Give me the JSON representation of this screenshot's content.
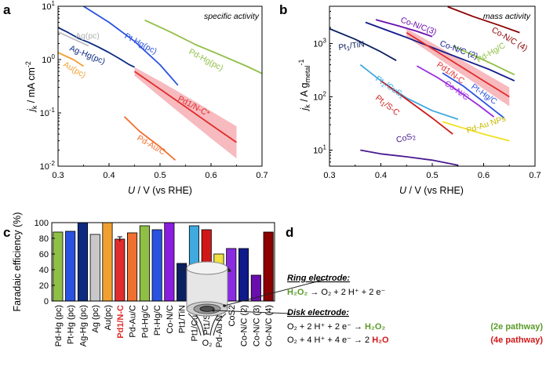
{
  "panels": {
    "a": {
      "letter": "a",
      "title": "specific activity"
    },
    "b": {
      "letter": "b",
      "title": "mass activity"
    },
    "c": {
      "letter": "c"
    },
    "d": {
      "letter": "d"
    }
  },
  "chart_data": [
    {
      "id": "a",
      "type": "line",
      "title": "specific activity",
      "xlabel": "U / V (vs RHE)",
      "ylabel": "j_k / mA cm^-2",
      "xlim": [
        0.3,
        0.7
      ],
      "ylim": [
        0.01,
        10
      ],
      "yscale": "log",
      "xticks": [
        0.3,
        0.4,
        0.5,
        0.6,
        0.7
      ],
      "xtick_labels": [
        "0.3",
        "0.4",
        "0.5",
        "0.6",
        "0.7"
      ],
      "yticks": [
        0.01,
        0.1,
        1,
        10
      ],
      "ytick_labels": [
        "10^-2",
        "10^-1",
        "10^0",
        "10^1"
      ],
      "series": [
        {
          "name": "Pt-Hg(pc)",
          "color": "#2a52e0",
          "x": [
            0.35,
            0.4,
            0.45,
            0.5,
            0.535
          ],
          "y": [
            10,
            5.0,
            2.2,
            0.8,
            0.33
          ]
        },
        {
          "name": "Ag-Hg(pc)",
          "color": "#0b2a80",
          "x": [
            0.3,
            0.32,
            0.34,
            0.36,
            0.38,
            0.4,
            0.42,
            0.44,
            0.45
          ],
          "y": [
            4.0,
            3.2,
            2.5,
            2.1,
            1.7,
            1.35,
            1.05,
            0.8,
            0.72
          ]
        },
        {
          "name": "Ag(pc)",
          "color": "#bdbdbd",
          "x": [
            0.3,
            0.32,
            0.34,
            0.36
          ],
          "y": [
            3.3,
            2.7,
            2.2,
            1.8
          ]
        },
        {
          "name": "Au(pc)",
          "color": "#f0a030",
          "x": [
            0.3,
            0.33,
            0.35
          ],
          "y": [
            1.35,
            1.0,
            0.75
          ]
        },
        {
          "name": "Pd-Hg(pc)",
          "color": "#8fbf45",
          "x": [
            0.47,
            0.52,
            0.57,
            0.62,
            0.67,
            0.7
          ],
          "y": [
            5.5,
            3.3,
            1.9,
            1.2,
            0.75,
            0.55
          ]
        },
        {
          "name": "Pd1/N-C*",
          "color": "#e02c2c",
          "x": [
            0.45,
            0.5,
            0.55,
            0.6,
            0.65
          ],
          "y": [
            0.6,
            0.28,
            0.13,
            0.06,
            0.028
          ]
        },
        {
          "name": "Pd-Au/C",
          "color": "#f07030",
          "x": [
            0.43,
            0.46,
            0.5,
            0.53
          ],
          "y": [
            0.085,
            0.045,
            0.023,
            0.013
          ]
        }
      ]
    },
    {
      "id": "b",
      "type": "line",
      "title": "mass activity",
      "xlabel": "U / V (vs RHE)",
      "ylabel": "j_k / A g_metal^-1",
      "xlim": [
        0.3,
        0.7
      ],
      "ylim": [
        5,
        5000
      ],
      "yscale": "log",
      "xticks": [
        0.3,
        0.4,
        0.5,
        0.6,
        0.7
      ],
      "xtick_labels": [
        "0.3",
        "0.4",
        "0.5",
        "0.6",
        "0.7"
      ],
      "yticks": [
        10,
        100,
        1000
      ],
      "ytick_labels": [
        "10^1",
        "10^2",
        "10^3"
      ],
      "series": [
        {
          "name": "Pt1/TiN",
          "color": "#0b2060",
          "x": [
            0.3,
            0.35,
            0.4,
            0.43
          ],
          "y": [
            1900,
            1200,
            700,
            480
          ]
        },
        {
          "name": "Co-N/C(3)",
          "color": "#6a0dad",
          "x": [
            0.39,
            0.43,
            0.47,
            0.5
          ],
          "y": [
            2800,
            2200,
            1700,
            1350
          ]
        },
        {
          "name": "Co-N/C (2)",
          "color": "#101a8a",
          "x": [
            0.37,
            0.45,
            0.53,
            0.61,
            0.66
          ],
          "y": [
            2500,
            1300,
            650,
            330,
            200
          ]
        },
        {
          "name": "Co-N/C (4)",
          "color": "#8b0000",
          "x": [
            0.53,
            0.58,
            0.63,
            0.67
          ],
          "y": [
            4900,
            3200,
            2200,
            1600
          ]
        },
        {
          "name": "Pd-Hg/C",
          "color": "#8fbf45",
          "x": [
            0.54,
            0.58,
            0.62,
            0.66
          ],
          "y": [
            900,
            600,
            400,
            260
          ]
        },
        {
          "name": "Pd1/N-C",
          "color": "#e02c2c",
          "x": [
            0.45,
            0.5,
            0.55,
            0.6,
            0.65
          ],
          "y": [
            1600,
            800,
            400,
            200,
            100
          ]
        },
        {
          "name": "Co-N/C",
          "color": "#9a2be2",
          "x": [
            0.47,
            0.51,
            0.55,
            0.59,
            0.62
          ],
          "y": [
            380,
            230,
            130,
            70,
            42
          ]
        },
        {
          "name": "Pt-Hg/C",
          "color": "#2a52e0",
          "x": [
            0.52,
            0.56,
            0.6,
            0.64
          ],
          "y": [
            280,
            160,
            80,
            40
          ]
        },
        {
          "name": "Pt1/CuSx",
          "color": "#3fa9e0",
          "x": [
            0.36,
            0.4,
            0.45,
            0.5,
            0.55
          ],
          "y": [
            400,
            200,
            95,
            55,
            38
          ]
        },
        {
          "name": "Pt1/S-C",
          "color": "#d01818",
          "x": [
            0.4,
            0.45,
            0.5,
            0.54
          ],
          "y": [
            200,
            90,
            40,
            20
          ]
        },
        {
          "name": "Pd-Au NPs",
          "color": "#f0e020",
          "x": [
            0.52,
            0.56,
            0.6,
            0.65
          ],
          "y": [
            34,
            26,
            20,
            15
          ]
        },
        {
          "name": "CoS2",
          "color": "#4a1a90",
          "x": [
            0.36,
            0.4,
            0.45,
            0.5,
            0.55
          ],
          "y": [
            10,
            8.5,
            7.5,
            6.5,
            5.2
          ]
        }
      ]
    },
    {
      "id": "c",
      "type": "bar",
      "ylabel": "Faradaic efficiency (%)",
      "ylim": [
        0,
        100
      ],
      "yticks": [
        0,
        20,
        40,
        60,
        80,
        100
      ],
      "categories": [
        "Pd-Hg (pc)",
        "Pt-Hg (pc)",
        "Ag-Hg (pc)",
        "Ag (pc)",
        "Au(pc)",
        "Pd1/N-C",
        "Pd-Au/C",
        "Pd-Hg/C",
        "Pt-Hg/C",
        "Co-N/C",
        "Pt1/TiN",
        "Pt1/CuSx",
        "Pt1/S-C",
        "Pd-Au NPs",
        "CoS2",
        "Co-N/C (2)",
        "Co-N/C (3)",
        "Co-N/C (4)"
      ],
      "values": [
        88,
        89,
        100,
        85,
        100,
        79,
        87,
        96,
        91,
        100,
        48,
        96,
        91,
        60,
        67,
        67,
        33,
        88
      ],
      "colors": [
        "#8fbf45",
        "#2a52e0",
        "#0b2a80",
        "#c8c8c8",
        "#f0a030",
        "#e02c2c",
        "#f07030",
        "#8fbf45",
        "#2a52e0",
        "#8a1de0",
        "#0b2060",
        "#3fa9e0",
        "#d01818",
        "#f0e040",
        "#8a2be2",
        "#101a8a",
        "#6a0dad",
        "#8b0000"
      ],
      "highlight": "Pd1/N-C",
      "highlight_color": "#e02c2c"
    }
  ],
  "panel_d": {
    "ring_label": "Ring electrode:",
    "ring_eq_a": "H₂O₂",
    "ring_eq_b": " → O₂ + 2 H⁺ + 2 e⁻",
    "disk_label": "Disk electrode:",
    "disk_eq1_a": "O₂ + 2 H⁺ + 2 e⁻ → ",
    "disk_eq1_b": "H₂O₂",
    "disk_eq1_path": "(2e pathway)",
    "disk_eq2_a": "O₂ + 4 H⁺ + 4 e⁻ → 2 ",
    "disk_eq2_b": "H₂O",
    "disk_eq2_path": "(4e pathway)",
    "o2_label": "O₂",
    "green": "#5a9a2a",
    "red": "#d01818"
  }
}
